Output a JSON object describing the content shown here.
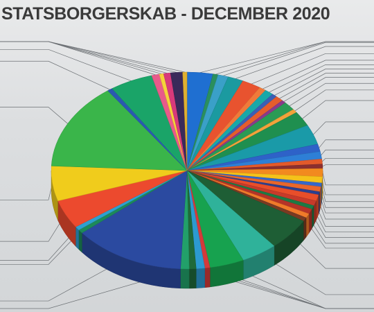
{
  "chart_data": {
    "type": "pie",
    "title": "STATSBORGERSKAB - DECEMBER 2020",
    "legend": "leader lines to both sides (labels not legible)",
    "slices": [
      {
        "value": 3.0,
        "color": "#1f6fd1"
      },
      {
        "value": 0.6,
        "color": "#2a8f5e"
      },
      {
        "value": 1.2,
        "color": "#3aa0c8"
      },
      {
        "value": 1.8,
        "color": "#1b9aa0"
      },
      {
        "value": 2.2,
        "color": "#e8532f"
      },
      {
        "value": 0.8,
        "color": "#f07a3a"
      },
      {
        "value": 1.0,
        "color": "#19a8a8"
      },
      {
        "value": 0.6,
        "color": "#3b5fb5"
      },
      {
        "value": 0.9,
        "color": "#e55d2c"
      },
      {
        "value": 0.5,
        "color": "#8a3a8a"
      },
      {
        "value": 1.4,
        "color": "#2a9b55"
      },
      {
        "value": 0.6,
        "color": "#f2a23a"
      },
      {
        "value": 2.4,
        "color": "#1f8f4f"
      },
      {
        "value": 3.2,
        "color": "#1a9aa8"
      },
      {
        "value": 1.2,
        "color": "#2e62c8"
      },
      {
        "value": 1.2,
        "color": "#2e7fd6"
      },
      {
        "value": 0.8,
        "color": "#e35a2a"
      },
      {
        "value": 0.7,
        "color": "#8b2f2f"
      },
      {
        "value": 1.3,
        "color": "#f28a1f"
      },
      {
        "value": 1.0,
        "color": "#f5c21a"
      },
      {
        "value": 0.6,
        "color": "#3568c9"
      },
      {
        "value": 0.8,
        "color": "#e9672b"
      },
      {
        "value": 0.5,
        "color": "#2b3f8f"
      },
      {
        "value": 1.0,
        "color": "#e84e2a"
      },
      {
        "value": 0.8,
        "color": "#c73a2a"
      },
      {
        "value": 0.6,
        "color": "#1c7a45"
      },
      {
        "value": 0.8,
        "color": "#b53328"
      },
      {
        "value": 0.7,
        "color": "#f07a2a"
      },
      {
        "value": 0.6,
        "color": "#7a3a22"
      },
      {
        "value": 5.2,
        "color": "#1e5e35"
      },
      {
        "value": 4.2,
        "color": "#2fb29a"
      },
      {
        "value": 4.0,
        "color": "#17a24f"
      },
      {
        "value": 0.6,
        "color": "#d43a3a"
      },
      {
        "value": 1.0,
        "color": "#2c9ad0"
      },
      {
        "value": 0.8,
        "color": "#1f6a3a"
      },
      {
        "value": 1.0,
        "color": "#22a06a"
      },
      {
        "value": 13.0,
        "color": "#2b4aa0"
      },
      {
        "value": 0.6,
        "color": "#1c8a5a"
      },
      {
        "value": 0.6,
        "color": "#2ea0d0"
      },
      {
        "value": 4.6,
        "color": "#ec4a2e"
      },
      {
        "value": 5.6,
        "color": "#f0cc1c"
      },
      {
        "value": 14.0,
        "color": "#3ab54a"
      },
      {
        "value": 0.6,
        "color": "#2a5ab0"
      },
      {
        "value": 5.0,
        "color": "#1aa468"
      },
      {
        "value": 0.9,
        "color": "#e85a8a"
      },
      {
        "value": 0.5,
        "color": "#f5d23a"
      },
      {
        "value": 0.8,
        "color": "#d83a7a"
      },
      {
        "value": 1.4,
        "color": "#3a2a5a"
      },
      {
        "value": 0.5,
        "color": "#e0b030"
      }
    ]
  }
}
